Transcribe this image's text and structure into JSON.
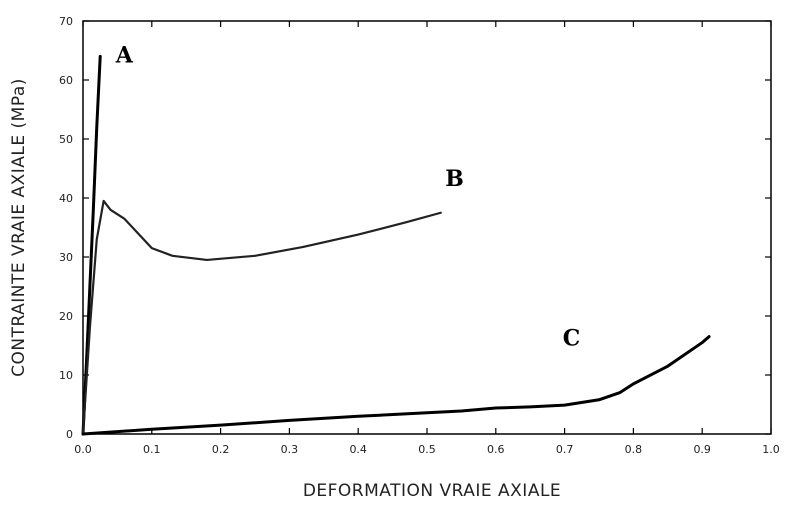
{
  "chart_data": {
    "type": "line",
    "title": "",
    "xlabel": "DEFORMATION VRAIE AXIALE",
    "ylabel": "CONTRAINTE VRAIE AXIALE (MPa)",
    "xlim": [
      0.0,
      1.0
    ],
    "ylim": [
      0,
      70
    ],
    "xticks": [
      "0.0",
      "0.1",
      "0.2",
      "0.3",
      "0.4",
      "0.5",
      "0.6",
      "0.7",
      "0.8",
      "0.9",
      "1.0"
    ],
    "yticks": [
      "0",
      "10",
      "20",
      "30",
      "40",
      "50",
      "60",
      "70"
    ],
    "grid": false,
    "legend": "none",
    "series": [
      {
        "name": "A",
        "color": "#000000",
        "x": [
          0.0,
          0.005,
          0.01,
          0.015,
          0.02,
          0.025
        ],
        "y": [
          0,
          12,
          25,
          38,
          52,
          64
        ]
      },
      {
        "name": "B",
        "color": "#222222",
        "x": [
          0.0,
          0.01,
          0.02,
          0.03,
          0.04,
          0.06,
          0.08,
          0.1,
          0.13,
          0.18,
          0.25,
          0.32,
          0.4,
          0.47,
          0.52
        ],
        "y": [
          0,
          18,
          33,
          39.5,
          38,
          36.5,
          34,
          31.5,
          30.2,
          29.5,
          30.2,
          31.7,
          33.8,
          35.9,
          37.5
        ]
      },
      {
        "name": "C",
        "color": "#000000",
        "x": [
          0.0,
          0.05,
          0.1,
          0.2,
          0.3,
          0.4,
          0.5,
          0.55,
          0.6,
          0.65,
          0.7,
          0.75,
          0.78,
          0.8,
          0.85,
          0.9,
          0.91
        ],
        "y": [
          0,
          0.4,
          0.8,
          1.5,
          2.3,
          3.0,
          3.6,
          3.9,
          4.4,
          4.6,
          4.9,
          5.8,
          7.0,
          8.5,
          11.5,
          15.5,
          16.5
        ]
      }
    ],
    "annotations": [
      {
        "text": "A",
        "x": 0.06,
        "y": 63
      },
      {
        "text": "B",
        "x": 0.54,
        "y": 42
      },
      {
        "text": "C",
        "x": 0.71,
        "y": 15
      }
    ]
  }
}
